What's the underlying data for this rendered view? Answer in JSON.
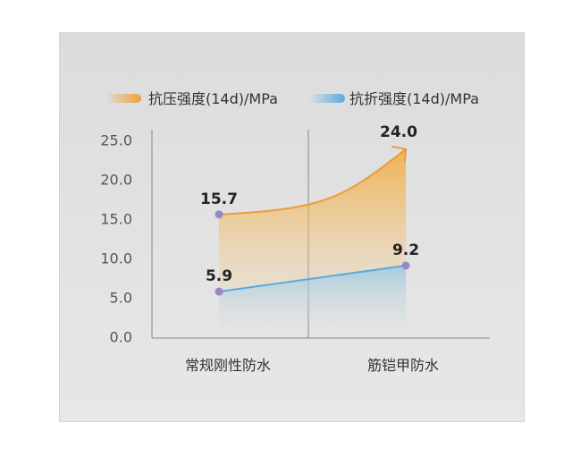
{
  "chart_data": {
    "type": "line",
    "categories": [
      "常规刚性防水",
      "筋铠甲防水"
    ],
    "series": [
      {
        "name": "抗压强度(14d)/MPa",
        "values": [
          15.7,
          24.0
        ],
        "color": "#f0a03a"
      },
      {
        "name": "抗折强度(14d)/MPa",
        "values": [
          5.9,
          9.2
        ],
        "color": "#5aa9dd"
      }
    ],
    "ylim": [
      0,
      25
    ],
    "yticks": [
      "0.0",
      "5.0",
      "10.0",
      "15.0",
      "20.0",
      "25.0"
    ],
    "legend_position": "top-left",
    "grid": false
  }
}
